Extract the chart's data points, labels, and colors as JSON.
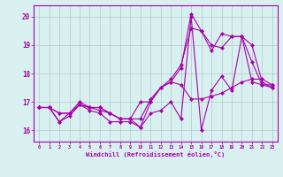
{
  "x": [
    0,
    1,
    2,
    3,
    4,
    5,
    6,
    7,
    8,
    9,
    10,
    11,
    12,
    13,
    14,
    15,
    16,
    17,
    18,
    19,
    20,
    21,
    22,
    23
  ],
  "series1": [
    16.8,
    16.8,
    16.6,
    16.6,
    16.9,
    16.8,
    16.8,
    16.6,
    16.4,
    16.4,
    17.0,
    17.0,
    17.5,
    17.7,
    17.6,
    17.1,
    17.1,
    17.2,
    17.3,
    17.5,
    17.7,
    17.8,
    17.8,
    17.6
  ],
  "series2": [
    16.8,
    16.8,
    16.3,
    16.5,
    16.9,
    16.7,
    16.6,
    16.3,
    16.3,
    16.3,
    16.1,
    16.6,
    16.7,
    17.0,
    16.4,
    20.0,
    16.0,
    17.4,
    17.9,
    17.4,
    19.3,
    19.0,
    17.7,
    17.5
  ],
  "series3": [
    16.8,
    16.8,
    16.3,
    16.6,
    17.0,
    16.8,
    16.8,
    16.6,
    16.4,
    16.4,
    16.4,
    17.1,
    17.5,
    17.8,
    18.3,
    19.6,
    19.5,
    19.0,
    18.9,
    19.3,
    19.3,
    18.4,
    17.6,
    17.5
  ],
  "series4": [
    16.8,
    16.8,
    16.6,
    16.6,
    16.9,
    16.8,
    16.7,
    16.6,
    16.4,
    16.4,
    16.1,
    17.0,
    17.5,
    17.7,
    18.2,
    20.1,
    19.5,
    18.8,
    19.4,
    19.3,
    19.3,
    17.7,
    17.6,
    17.6
  ],
  "line_color": "#aa00aa",
  "background_color": "#d8f0f0",
  "grid_color": "#b0c8c8",
  "axis_color": "#aa00aa",
  "xlabel": "Windchill (Refroidissement éolien,°C)",
  "ylim": [
    15.6,
    20.4
  ],
  "xlim": [
    -0.5,
    23.5
  ],
  "yticks": [
    16,
    17,
    18,
    19,
    20
  ],
  "xticks": [
    0,
    1,
    2,
    3,
    4,
    5,
    6,
    7,
    8,
    9,
    10,
    11,
    12,
    13,
    14,
    15,
    16,
    17,
    18,
    19,
    20,
    21,
    22,
    23
  ]
}
